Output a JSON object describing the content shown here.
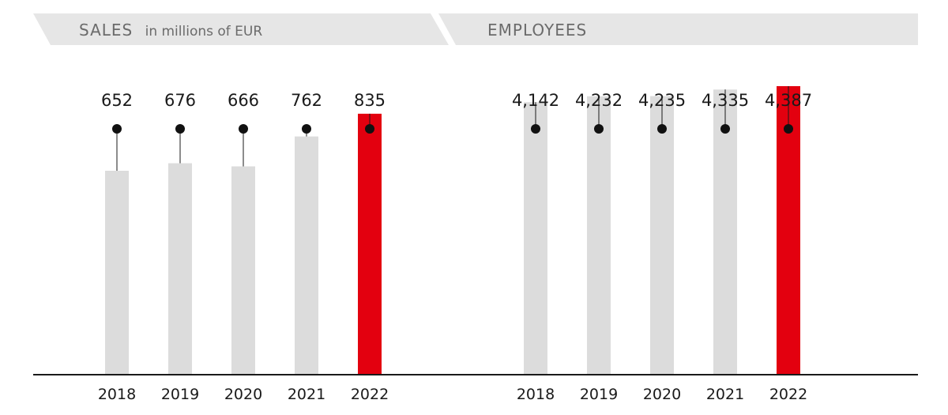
{
  "headers": {
    "sales_title": "SALES",
    "sales_unit": "in millions of EUR",
    "employees_title": "EMPLOYEES"
  },
  "colors": {
    "bar": "#dcdcdc",
    "highlight": "#e3000f",
    "header_bg": "#e6e6e6",
    "text": "#1a1a1a",
    "header_text": "#6b6b6b"
  },
  "chart_data": [
    {
      "type": "bar",
      "title": "SALES in millions of EUR",
      "categories": [
        "2018",
        "2019",
        "2020",
        "2021",
        "2022"
      ],
      "values": [
        652,
        676,
        666,
        762,
        835
      ],
      "value_labels": [
        "652",
        "676",
        "666",
        "762",
        "835"
      ],
      "highlight": "2022",
      "ylim": [
        0,
        1200
      ],
      "grid": false
    },
    {
      "type": "bar",
      "title": "EMPLOYEES",
      "categories": [
        "2018",
        "2019",
        "2020",
        "2021",
        "2022"
      ],
      "values": [
        4142,
        4232,
        4235,
        4335,
        4387
      ],
      "value_labels": [
        "4,142",
        "4,232",
        "4,235",
        "4,335",
        "4,387"
      ],
      "highlight": "2022",
      "ylim": [
        0,
        5700
      ],
      "grid": false
    }
  ]
}
